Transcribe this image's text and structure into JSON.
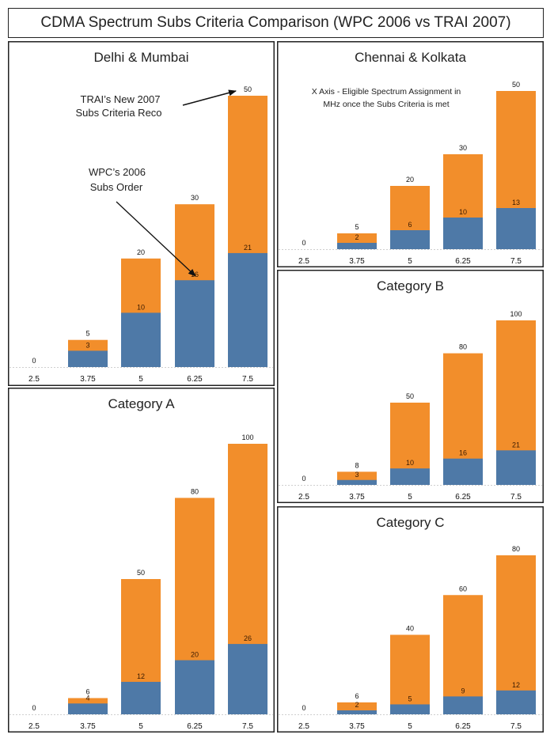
{
  "page_title": "CDMA Spectrum Subs Criteria Comparison (WPC 2006 vs TRAI 2007)",
  "colors": {
    "wpc_2006": "#4e79a7",
    "trai_2007": "#f28e2b",
    "frame": "#222222"
  },
  "annotations": {
    "trai": [
      "TRAI’s New 2007",
      "Subs Criteria Reco"
    ],
    "wpc": [
      "WPC’s 2006",
      "Subs Order"
    ],
    "xaxis_note": [
      "X Axis - Eligible Spectrum Assignment in",
      "MHz once the Subs Criteria is met"
    ]
  },
  "chart_data": [
    {
      "type": "bar",
      "stacked": "overlay",
      "title": "Delhi & Mumbai",
      "xlabel": "Eligible Spectrum Assignment (MHz)",
      "categories": [
        "2.5",
        "3.75",
        "5",
        "6.25",
        "7.5"
      ],
      "series": [
        {
          "name": "WPC 2006 Subs Order",
          "values": [
            0,
            3,
            10,
            16,
            21
          ]
        },
        {
          "name": "TRAI 2007 Subs Criteria Reco",
          "values": [
            0,
            5,
            20,
            30,
            50
          ]
        }
      ],
      "ylim": [
        0,
        50
      ]
    },
    {
      "type": "bar",
      "stacked": "overlay",
      "title": "Chennai & Kolkata",
      "xlabel": "Eligible Spectrum Assignment (MHz)",
      "categories": [
        "2.5",
        "3.75",
        "5",
        "6.25",
        "7.5"
      ],
      "series": [
        {
          "name": "WPC 2006 Subs Order",
          "values": [
            0,
            2,
            6,
            10,
            13
          ]
        },
        {
          "name": "TRAI 2007 Subs Criteria Reco",
          "values": [
            0,
            5,
            20,
            30,
            50
          ]
        }
      ],
      "ylim": [
        0,
        50
      ]
    },
    {
      "type": "bar",
      "stacked": "overlay",
      "title": "Category A",
      "xlabel": "Eligible Spectrum Assignment (MHz)",
      "categories": [
        "2.5",
        "3.75",
        "5",
        "6.25",
        "7.5"
      ],
      "series": [
        {
          "name": "WPC 2006 Subs Order",
          "values": [
            0,
            4,
            12,
            20,
            26
          ]
        },
        {
          "name": "TRAI 2007 Subs Criteria Reco",
          "values": [
            0,
            6,
            50,
            80,
            100
          ]
        }
      ],
      "ylim": [
        0,
        100
      ]
    },
    {
      "type": "bar",
      "stacked": "overlay",
      "title": "Category B",
      "xlabel": "Eligible Spectrum Assignment (MHz)",
      "categories": [
        "2.5",
        "3.75",
        "5",
        "6.25",
        "7.5"
      ],
      "series": [
        {
          "name": "WPC 2006 Subs Order",
          "values": [
            0,
            3,
            10,
            16,
            21
          ]
        },
        {
          "name": "TRAI 2007 Subs Criteria Reco",
          "values": [
            0,
            8,
            50,
            80,
            100
          ]
        }
      ],
      "ylim": [
        0,
        100
      ]
    },
    {
      "type": "bar",
      "stacked": "overlay",
      "title": "Category C",
      "xlabel": "Eligible Spectrum Assignment (MHz)",
      "categories": [
        "2.5",
        "3.75",
        "5",
        "6.25",
        "7.5"
      ],
      "series": [
        {
          "name": "WPC 2006 Subs Order",
          "values": [
            0,
            2,
            5,
            9,
            12
          ]
        },
        {
          "name": "TRAI 2007 Subs Criteria Reco",
          "values": [
            0,
            6,
            40,
            60,
            80
          ]
        }
      ],
      "ylim": [
        0,
        80
      ]
    }
  ]
}
